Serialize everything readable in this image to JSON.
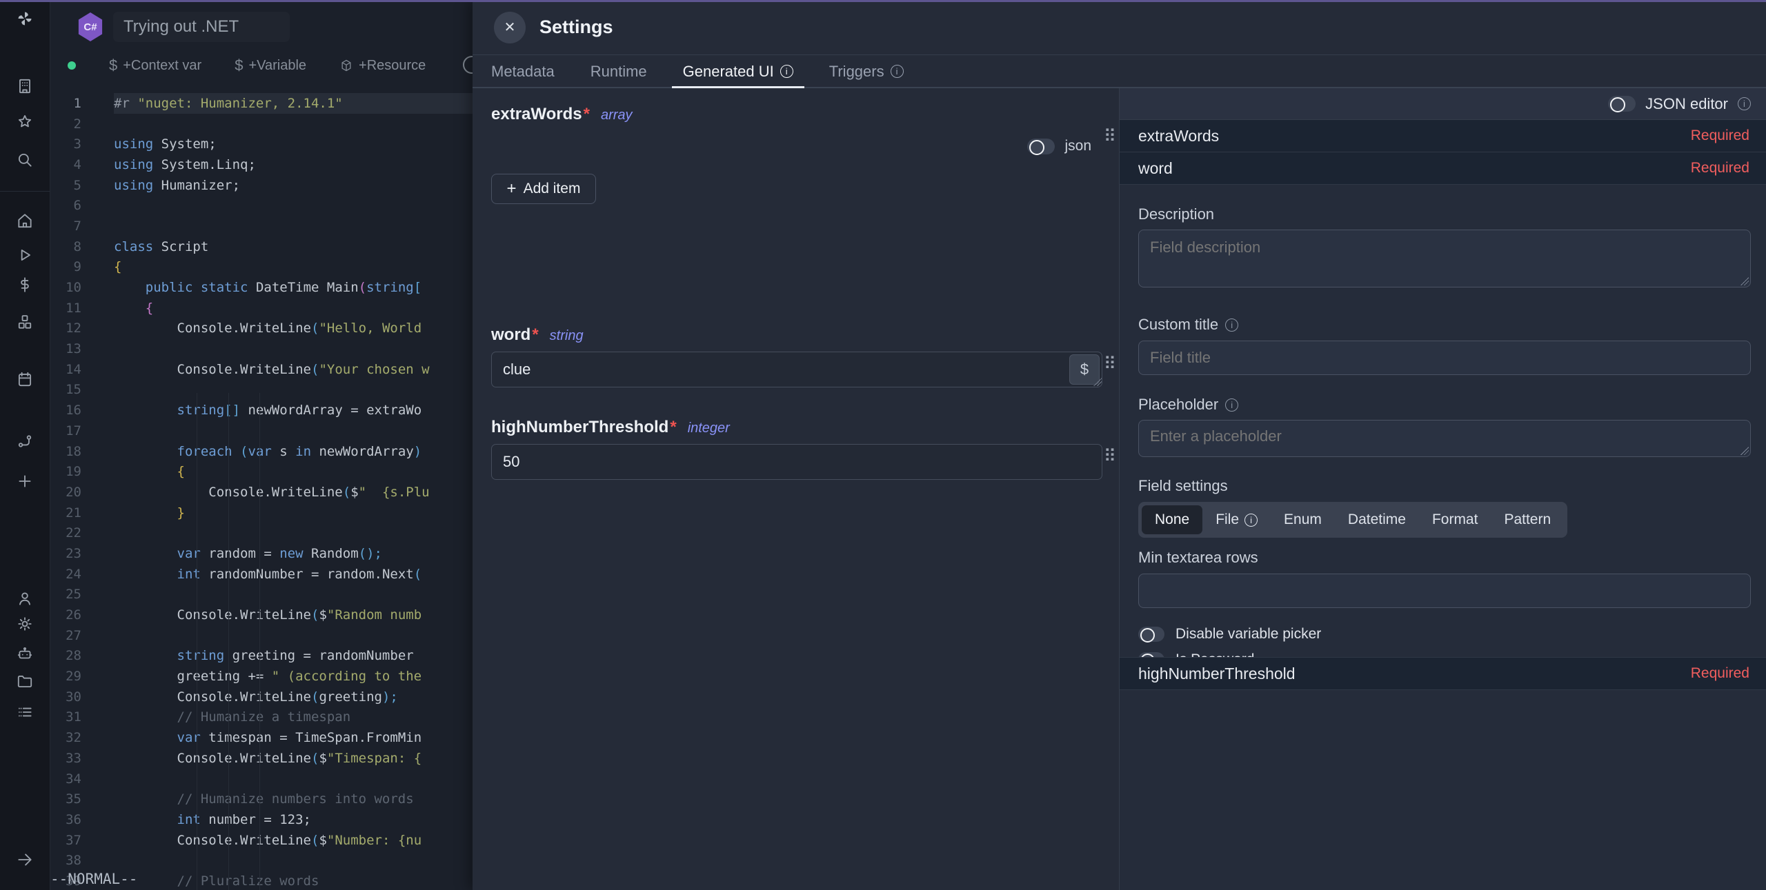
{
  "sidebar": {
    "icons": [
      "building",
      "star",
      "search",
      "home",
      "play",
      "dollar",
      "cubes",
      "calendar",
      "route",
      "plus",
      "person",
      "gear",
      "robot",
      "folder",
      "list",
      "arrow-right"
    ]
  },
  "editor": {
    "title": "Trying out .NET",
    "language_badge": "C#",
    "toolbar_items": [
      {
        "icon": "dollar",
        "label": "+Context var"
      },
      {
        "icon": "dollar",
        "label": "+Variable"
      },
      {
        "icon": "package",
        "label": "+Resource"
      }
    ],
    "vim_status": "--NORMAL--",
    "code_lines": [
      {
        "n": 1,
        "active": true,
        "tokens": [
          [
            "d",
            "#r "
          ],
          [
            "s",
            "\"nuget: Humanizer, 2.14.1\""
          ]
        ]
      },
      {
        "n": 2,
        "tokens": []
      },
      {
        "n": 3,
        "tokens": [
          [
            "k",
            "using"
          ],
          [
            "t",
            " System;"
          ]
        ]
      },
      {
        "n": 4,
        "tokens": [
          [
            "k",
            "using"
          ],
          [
            "t",
            " System.Linq;"
          ]
        ]
      },
      {
        "n": 5,
        "tokens": [
          [
            "k",
            "using"
          ],
          [
            "t",
            " Humanizer;"
          ]
        ]
      },
      {
        "n": 6,
        "tokens": []
      },
      {
        "n": 7,
        "tokens": []
      },
      {
        "n": 8,
        "tokens": [
          [
            "k",
            "class"
          ],
          [
            "t",
            " Script"
          ]
        ]
      },
      {
        "n": 9,
        "tokens": [
          [
            "y",
            "{"
          ]
        ]
      },
      {
        "n": 10,
        "tokens": [
          [
            "t",
            "    "
          ],
          [
            "k",
            "public"
          ],
          [
            "t",
            " "
          ],
          [
            "k",
            "static"
          ],
          [
            "t",
            " DateTime Main"
          ],
          [
            "m",
            "("
          ],
          [
            "k",
            "string"
          ],
          [
            "b",
            "["
          ]
        ]
      },
      {
        "n": 11,
        "tokens": [
          [
            "t",
            "    "
          ],
          [
            "m",
            "{"
          ]
        ]
      },
      {
        "n": 12,
        "tokens": [
          [
            "t",
            "        Console.WriteLine"
          ],
          [
            "b",
            "("
          ],
          [
            "s",
            "\"Hello, World"
          ]
        ]
      },
      {
        "n": 13,
        "tokens": []
      },
      {
        "n": 14,
        "tokens": [
          [
            "t",
            "        Console.WriteLine"
          ],
          [
            "b",
            "("
          ],
          [
            "s",
            "\"Your chosen w"
          ]
        ]
      },
      {
        "n": 15,
        "tokens": []
      },
      {
        "n": 16,
        "tokens": [
          [
            "t",
            "        "
          ],
          [
            "k",
            "string"
          ],
          [
            "b",
            "[]"
          ],
          [
            "t",
            " newWordArray = extraWo"
          ]
        ]
      },
      {
        "n": 17,
        "tokens": []
      },
      {
        "n": 18,
        "tokens": [
          [
            "t",
            "        "
          ],
          [
            "k",
            "foreach"
          ],
          [
            "t",
            " "
          ],
          [
            "b",
            "("
          ],
          [
            "k",
            "var"
          ],
          [
            "t",
            " s "
          ],
          [
            "k",
            "in"
          ],
          [
            "t",
            " newWordArray"
          ],
          [
            "b",
            ")"
          ]
        ]
      },
      {
        "n": 19,
        "tokens": [
          [
            "t",
            "        "
          ],
          [
            "y",
            "{"
          ]
        ]
      },
      {
        "n": 20,
        "tokens": [
          [
            "t",
            "            Console.WriteLine"
          ],
          [
            "b",
            "("
          ],
          [
            "t",
            "$"
          ],
          [
            "s",
            "\"  {s.Plu"
          ]
        ]
      },
      {
        "n": 21,
        "tokens": [
          [
            "t",
            "        "
          ],
          [
            "y",
            "}"
          ]
        ]
      },
      {
        "n": 22,
        "tokens": []
      },
      {
        "n": 23,
        "tokens": [
          [
            "t",
            "        "
          ],
          [
            "k",
            "var"
          ],
          [
            "t",
            " random = "
          ],
          [
            "k",
            "new"
          ],
          [
            "t",
            " Random"
          ],
          [
            "b",
            "();"
          ]
        ]
      },
      {
        "n": 24,
        "tokens": [
          [
            "t",
            "        "
          ],
          [
            "k",
            "int"
          ],
          [
            "t",
            " randomNumber = random.Next"
          ],
          [
            "b",
            "("
          ]
        ]
      },
      {
        "n": 25,
        "tokens": []
      },
      {
        "n": 26,
        "tokens": [
          [
            "t",
            "        Console.WriteLine"
          ],
          [
            "b",
            "("
          ],
          [
            "t",
            "$"
          ],
          [
            "s",
            "\"Random numb"
          ]
        ]
      },
      {
        "n": 27,
        "tokens": []
      },
      {
        "n": 28,
        "tokens": [
          [
            "t",
            "        "
          ],
          [
            "k",
            "string"
          ],
          [
            "t",
            " greeting = randomNumber "
          ]
        ]
      },
      {
        "n": 29,
        "tokens": [
          [
            "t",
            "        greeting += "
          ],
          [
            "s",
            "\" (according to the"
          ]
        ]
      },
      {
        "n": 30,
        "tokens": [
          [
            "t",
            "        Console.WriteLine"
          ],
          [
            "b",
            "("
          ],
          [
            "t",
            "greeting"
          ],
          [
            "b",
            ");"
          ]
        ]
      },
      {
        "n": 31,
        "tokens": [
          [
            "c",
            "        // Humanize a timespan"
          ]
        ]
      },
      {
        "n": 32,
        "tokens": [
          [
            "t",
            "        "
          ],
          [
            "k",
            "var"
          ],
          [
            "t",
            " timespan = TimeSpan.FromMin"
          ]
        ]
      },
      {
        "n": 33,
        "tokens": [
          [
            "t",
            "        Console.WriteLine"
          ],
          [
            "b",
            "("
          ],
          [
            "t",
            "$"
          ],
          [
            "s",
            "\"Timespan: {"
          ]
        ]
      },
      {
        "n": 34,
        "tokens": []
      },
      {
        "n": 35,
        "tokens": [
          [
            "c",
            "        // Humanize numbers into words"
          ]
        ]
      },
      {
        "n": 36,
        "tokens": [
          [
            "t",
            "        "
          ],
          [
            "k",
            "int"
          ],
          [
            "t",
            " number = 123;"
          ]
        ]
      },
      {
        "n": 37,
        "tokens": [
          [
            "t",
            "        Console.WriteLine"
          ],
          [
            "b",
            "("
          ],
          [
            "t",
            "$"
          ],
          [
            "s",
            "\"Number: {nu"
          ]
        ]
      },
      {
        "n": 38,
        "tokens": []
      },
      {
        "n": 39,
        "tokens": [
          [
            "c",
            "        // Pluralize words"
          ]
        ]
      }
    ]
  },
  "settings": {
    "title": "Settings",
    "close_glyph": "✕",
    "tabs": [
      {
        "label": "Metadata",
        "info": false,
        "active": false
      },
      {
        "label": "Runtime",
        "info": false,
        "active": false
      },
      {
        "label": "Generated UI",
        "info": true,
        "active": true
      },
      {
        "label": "Triggers",
        "info": true,
        "active": false
      }
    ],
    "form": {
      "json_toggle_label": "json",
      "add_item_label": "Add item",
      "fields": [
        {
          "label": "extraWords",
          "type": "array",
          "required": true
        },
        {
          "label": "word",
          "type": "string",
          "required": true,
          "value": "clue",
          "picker": "$"
        },
        {
          "label": "highNumberThreshold",
          "type": "integer",
          "required": true,
          "value": "50"
        }
      ]
    },
    "inspector": {
      "json_editor_label": "JSON editor",
      "required_label": "Required",
      "rows": [
        {
          "name": "extraWords"
        },
        {
          "name": "word"
        }
      ],
      "description_label": "Description",
      "description_placeholder": "Field description",
      "custom_title_label": "Custom title",
      "custom_title_placeholder": "Field title",
      "placeholder_label": "Placeholder",
      "placeholder_placeholder": "Enter a placeholder",
      "field_settings_label": "Field settings",
      "field_settings_options": [
        {
          "label": "None",
          "selected": true,
          "info": false
        },
        {
          "label": "File",
          "selected": false,
          "info": true
        },
        {
          "label": "Enum",
          "selected": false,
          "info": false
        },
        {
          "label": "Datetime",
          "selected": false,
          "info": false
        },
        {
          "label": "Format",
          "selected": false,
          "info": false
        },
        {
          "label": "Pattern",
          "selected": false,
          "info": false
        }
      ],
      "min_textarea_rows_label": "Min textarea rows",
      "toggles": [
        {
          "label": "Disable variable picker",
          "on": false
        },
        {
          "label": "Is Password",
          "on": false
        }
      ],
      "bottom_row_name": "highNumberThreshold"
    }
  },
  "colors": {
    "top_accent": "#5d5590",
    "status_dot": "#3ecf8e",
    "required_red": "#f15e5e",
    "type_label_indigo": "#8a93f8",
    "csharp_purple": "#7e57c5"
  }
}
